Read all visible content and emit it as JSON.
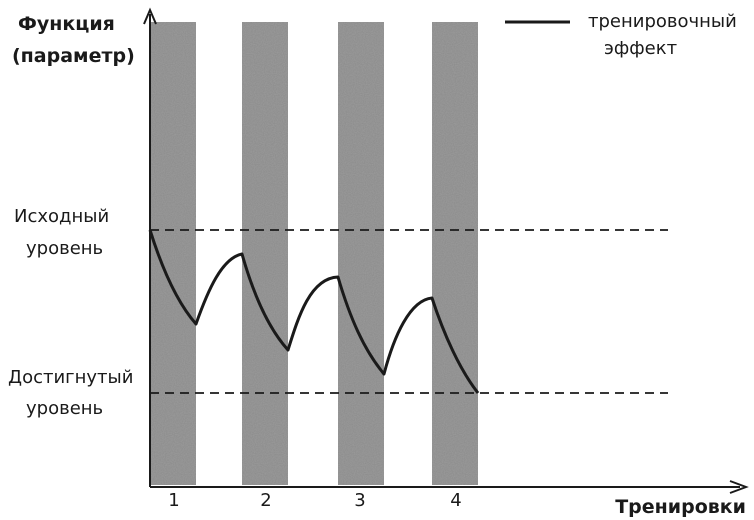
{
  "y_axis_title": [
    "Функция",
    "(параметр)"
  ],
  "x_axis_title": "Тренировки",
  "legend": {
    "label": [
      "тренировочный",
      "эффект"
    ]
  },
  "levels": {
    "initial": {
      "label": [
        "Исходный",
        "уровень"
      ]
    },
    "achieved": {
      "label": [
        "Достигнутый",
        "уровень"
      ]
    }
  },
  "trainings": [
    "1",
    "2",
    "3",
    "4"
  ],
  "colors": {
    "band": "#8e8e8e",
    "line": "#1a1a1a",
    "axis": "#1a1a1a"
  }
}
